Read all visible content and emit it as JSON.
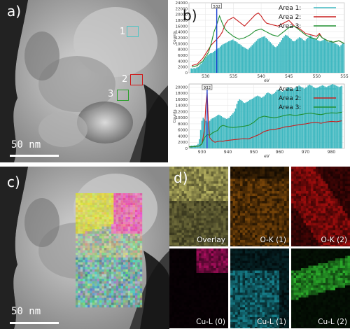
{
  "panels": {
    "a": {
      "label": "a)",
      "scale": "50 nm",
      "boxes": [
        {
          "label": "1",
          "color": "#4fc3c3"
        },
        {
          "label": "2",
          "color": "#d01818"
        },
        {
          "label": "3",
          "color": "#2ca02c"
        }
      ]
    },
    "b": {
      "label": "b)"
    },
    "c": {
      "label": "c)",
      "scale": "50 nm"
    },
    "d": {
      "label": "d)",
      "tiles": [
        {
          "caption": "Overlay",
          "base": "#c8c36a"
        },
        {
          "caption": "O-K (1)",
          "base": "#c8730f"
        },
        {
          "caption": "O-K (2)",
          "base": "#c81010"
        },
        {
          "caption": "Cu-L (0)",
          "base": "#c0106a"
        },
        {
          "caption": "Cu-L (1)",
          "base": "#20b7c8"
        },
        {
          "caption": "Cu-L (2)",
          "base": "#30c030"
        }
      ]
    }
  },
  "legend": {
    "entries": [
      {
        "name": "Area 1:",
        "color": "#3fb8c0"
      },
      {
        "name": "Area 2:",
        "color": "#c81e1e"
      },
      {
        "name": "Area 3:",
        "color": "#1f8f2f"
      }
    ]
  },
  "chart_data": [
    {
      "type": "bar",
      "xlabel": "eV",
      "ylabel": "Counts",
      "xlim": [
        527,
        555
      ],
      "ylim": [
        0,
        24000
      ],
      "xticks": [
        530,
        535,
        540,
        545,
        550,
        555
      ],
      "yticks": [
        0,
        2000,
        4000,
        6000,
        8000,
        10000,
        12000,
        14000,
        16000,
        18000,
        20000,
        22000,
        24000
      ],
      "marker": {
        "x": 532,
        "label": "532"
      },
      "bars_name": "Area 1:",
      "bars": {
        "x0": 527.4,
        "step": 0.25,
        "values": [
          1500,
          1400,
          1600,
          1500,
          1800,
          2000,
          2500,
          3000,
          3600,
          4200,
          5000,
          5500,
          6000,
          6500,
          6700,
          6800,
          7200,
          7500,
          8000,
          8300,
          8500,
          9000,
          9500,
          9800,
          10000,
          10300,
          10500,
          10800,
          11000,
          11200,
          11400,
          11000,
          10800,
          10500,
          10000,
          9800,
          9500,
          9000,
          8800,
          8500,
          8200,
          8000,
          8500,
          9000,
          9500,
          10000,
          10500,
          11000,
          11500,
          11800,
          12000,
          12200,
          12400,
          12500,
          12000,
          11500,
          11000,
          10500,
          10000,
          9500,
          9000,
          8800,
          9200,
          9800,
          10500,
          11200,
          12000,
          12500,
          13000,
          12800,
          12400,
          12000,
          11500,
          11000,
          10800,
          11000,
          11400,
          11800,
          12200,
          12000,
          11600,
          11200,
          11000,
          11500,
          12000,
          12500,
          12800,
          12400,
          12000,
          11800,
          11500,
          11200,
          11000,
          10800,
          11000,
          11200,
          11500,
          11200,
          10800,
          10500,
          10800,
          11000,
          10500,
          10200,
          10000,
          9800,
          9500,
          9000,
          9500,
          10000,
          10200,
          10500
        ]
      },
      "series": [
        {
          "name": "Area 2:",
          "color": "#c81e1e",
          "x": [
            527.5,
            528.5,
            529.5,
            530.5,
            531,
            531.5,
            532,
            532.5,
            533,
            533.5,
            534,
            535,
            536,
            537,
            538,
            539,
            539.5,
            540,
            540.5,
            541,
            542,
            543,
            544,
            545,
            546,
            547,
            548,
            549,
            550,
            550.5,
            551,
            552,
            553,
            554,
            555
          ],
          "y": [
            2500,
            3000,
            5000,
            8000,
            9500,
            10500,
            11500,
            12500,
            14000,
            16500,
            18000,
            19000,
            17500,
            16000,
            18000,
            20000,
            20500,
            19500,
            18000,
            17000,
            16500,
            16000,
            17000,
            18000,
            16000,
            15000,
            13500,
            13000,
            12500,
            13500,
            12000,
            11000,
            10500,
            11000,
            10000
          ]
        },
        {
          "name": "Area 3:",
          "color": "#1f8f2f",
          "x": [
            527.5,
            528.5,
            529.5,
            530.5,
            531,
            531.5,
            532,
            532.5,
            533,
            533.5,
            534,
            535,
            536,
            537,
            538,
            539,
            540,
            541,
            542,
            543,
            544,
            545,
            546,
            547,
            548,
            549,
            550,
            550.5,
            551,
            552,
            553,
            554,
            555
          ],
          "y": [
            2000,
            2500,
            4000,
            7000,
            10000,
            14000,
            16500,
            19500,
            17000,
            15000,
            14000,
            12500,
            11500,
            12000,
            13000,
            14500,
            15000,
            14000,
            13000,
            12500,
            14000,
            15500,
            16000,
            14500,
            13000,
            12000,
            11500,
            13000,
            12000,
            11000,
            10500,
            11000,
            10000
          ]
        }
      ]
    },
    {
      "type": "bar",
      "xlabel": "eV",
      "ylabel": "Counts",
      "xlim": [
        925,
        985
      ],
      "ylim": [
        0,
        21000
      ],
      "xticks": [
        930,
        940,
        950,
        960,
        970,
        980
      ],
      "yticks": [
        0,
        2000,
        4000,
        6000,
        8000,
        10000,
        12000,
        14000,
        16000,
        18000,
        20000
      ],
      "marker": {
        "x": 932,
        "label": "932"
      },
      "bars_name": "Area 1:",
      "bars": {
        "x0": 925.5,
        "step": 0.5,
        "values": [
          800,
          900,
          850,
          1000,
          950,
          1100,
          1500,
          3000,
          6000,
          9000,
          10000,
          9500,
          9000,
          8500,
          8800,
          9000,
          9500,
          9800,
          10000,
          10200,
          10500,
          10800,
          11000,
          10800,
          10500,
          10200,
          10000,
          9800,
          9600,
          9800,
          10000,
          10500,
          11000,
          11500,
          12000,
          13000,
          14500,
          15500,
          16000,
          15800,
          15500,
          15000,
          14800,
          15000,
          15200,
          15500,
          15800,
          16000,
          16200,
          16500,
          16800,
          17000,
          17200,
          17000,
          16800,
          16500,
          16800,
          17000,
          17500,
          18000,
          18200,
          18000,
          17800,
          17500,
          17800,
          18000,
          18500,
          19000,
          19200,
          19000,
          18800,
          18500,
          18800,
          19000,
          19500,
          19800,
          20000,
          19800,
          19500,
          19200,
          19500,
          19800,
          20000,
          20200,
          20500,
          20200,
          20000,
          19800,
          19500,
          19800,
          20000,
          20500,
          20800,
          20600,
          20400,
          20000,
          19800,
          19600,
          19800,
          20000,
          20200,
          20400,
          20600,
          20400,
          20200,
          20000,
          20200,
          20400,
          20600,
          20800,
          21000,
          20800,
          20600,
          20400,
          20200,
          20000,
          20200,
          20400
        ]
      },
      "series": [
        {
          "name": "Area 2:",
          "color": "#c81e1e",
          "x": [
            925,
            927,
            929,
            930,
            931,
            931.5,
            932,
            932.5,
            933,
            934,
            935,
            936,
            937,
            938,
            939,
            940,
            942,
            944,
            946,
            948,
            950,
            952,
            954,
            956,
            958,
            960,
            962,
            964,
            966,
            968,
            970,
            972,
            974,
            976,
            978,
            980,
            982,
            984
          ],
          "y": [
            500,
            600,
            800,
            1500,
            6000,
            14000,
            18500,
            8000,
            3500,
            2500,
            2000,
            2200,
            2400,
            2300,
            2500,
            2600,
            2800,
            3000,
            3200,
            3100,
            3800,
            4500,
            5500,
            6000,
            6200,
            6500,
            7000,
            7200,
            7500,
            7800,
            8000,
            8300,
            8500,
            8200,
            8600,
            8800,
            8700,
            9000
          ]
        },
        {
          "name": "Area 3:",
          "color": "#1f8f2f",
          "x": [
            925,
            927,
            929,
            930,
            931,
            932,
            933,
            934,
            935,
            936,
            937,
            938,
            939,
            940,
            942,
            944,
            946,
            948,
            950,
            952,
            954,
            956,
            958,
            960,
            962,
            964,
            966,
            968,
            970,
            972,
            974,
            976,
            978,
            980,
            982,
            984
          ],
          "y": [
            500,
            600,
            800,
            1500,
            3500,
            4500,
            4300,
            5000,
            5500,
            5800,
            7000,
            7500,
            7300,
            7000,
            6800,
            7000,
            7200,
            7500,
            8500,
            10000,
            10500,
            10200,
            10000,
            10300,
            10800,
            11000,
            10700,
            11000,
            11300,
            11500,
            11200,
            11000,
            11400,
            11600,
            11500,
            11800
          ]
        }
      ]
    }
  ]
}
